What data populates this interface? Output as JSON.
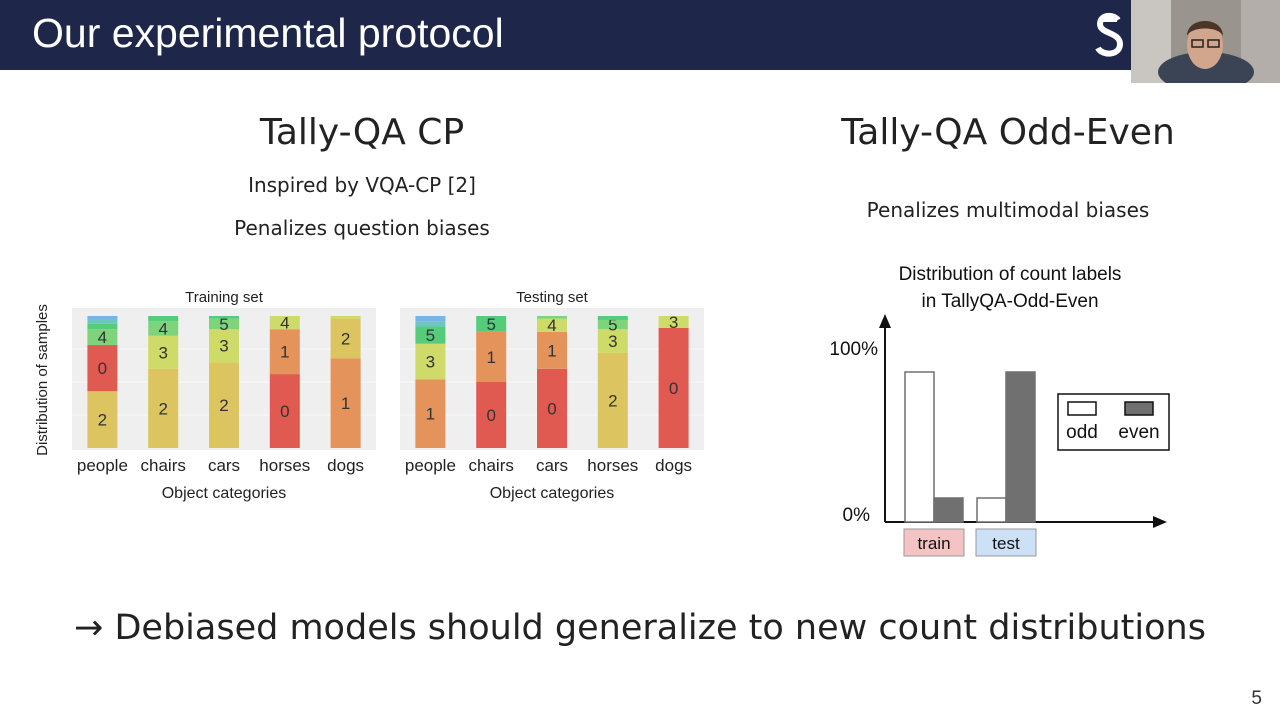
{
  "slide": {
    "title": "Our experimental protocol",
    "page_number": "5",
    "bottom_statement": "→ Debiased models should generalize to new count distributions"
  },
  "left_section": {
    "heading": "Tally-QA CP",
    "line1": "Inspired by VQA-CP [2]",
    "line2": "Penalizes question biases"
  },
  "right_section": {
    "heading": "Tally-QA Odd-Even",
    "line1": "Penalizes multimodal biases"
  },
  "colors": {
    "header_bg": "#1e2749",
    "label_0": "#e05a52",
    "label_1": "#e4945a",
    "label_2": "#dcc461",
    "label_3": "#cedb68",
    "label_4": "#7ed47a",
    "label_5": "#55cc7a",
    "label_6": "#6cc7c0",
    "label_7": "#78b4e6",
    "train_tag": "#f4c4c4",
    "test_tag": "#cce0f6"
  },
  "chart_data": [
    {
      "type": "bar",
      "title": "Training set",
      "xlabel": "Object categories",
      "ylabel": "Distribution of samples",
      "categories": [
        "people",
        "chairs",
        "cars",
        "horses",
        "dogs"
      ],
      "stacked": true,
      "segments": [
        [
          {
            "label": "2",
            "value": 0.43,
            "color": "#dcc461"
          },
          {
            "label": "0",
            "value": 0.35,
            "color": "#e05a52"
          },
          {
            "label": "4",
            "value": 0.12,
            "color": "#7ed47a"
          },
          {
            "label": "",
            "value": 0.04,
            "color": "#55cc7a"
          },
          {
            "label": "",
            "value": 0.03,
            "color": "#6cc7c0"
          },
          {
            "label": "",
            "value": 0.03,
            "color": "#78b4e6"
          }
        ],
        [
          {
            "label": "2",
            "value": 0.6,
            "color": "#dcc461"
          },
          {
            "label": "3",
            "value": 0.25,
            "color": "#cedb68"
          },
          {
            "label": "4",
            "value": 0.11,
            "color": "#7ed47a"
          },
          {
            "label": "",
            "value": 0.04,
            "color": "#55cc7a"
          }
        ],
        [
          {
            "label": "2",
            "value": 0.65,
            "color": "#dcc461"
          },
          {
            "label": "3",
            "value": 0.25,
            "color": "#cedb68"
          },
          {
            "label": "5",
            "value": 0.08,
            "color": "#7ed47a"
          },
          {
            "label": "",
            "value": 0.02,
            "color": "#55cc7a"
          }
        ],
        [
          {
            "label": "0",
            "value": 0.56,
            "color": "#e05a52"
          },
          {
            "label": "1",
            "value": 0.34,
            "color": "#e4945a"
          },
          {
            "label": "4",
            "value": 0.1,
            "color": "#cedb68"
          }
        ],
        [
          {
            "label": "1",
            "value": 0.68,
            "color": "#e4945a"
          },
          {
            "label": "2",
            "value": 0.3,
            "color": "#dcc461"
          },
          {
            "label": "",
            "value": 0.02,
            "color": "#cedb68"
          }
        ]
      ]
    },
    {
      "type": "bar",
      "title": "Testing set",
      "xlabel": "Object categories",
      "ylabel": "",
      "categories": [
        "people",
        "chairs",
        "cars",
        "horses",
        "dogs"
      ],
      "stacked": true,
      "segments": [
        [
          {
            "label": "1",
            "value": 0.52,
            "color": "#e4945a"
          },
          {
            "label": "3",
            "value": 0.27,
            "color": "#cedb68"
          },
          {
            "label": "5",
            "value": 0.13,
            "color": "#55cc7a"
          },
          {
            "label": "",
            "value": 0.04,
            "color": "#6cc7c0"
          },
          {
            "label": "",
            "value": 0.04,
            "color": "#78b4e6"
          }
        ],
        [
          {
            "label": "0",
            "value": 0.5,
            "color": "#e05a52"
          },
          {
            "label": "1",
            "value": 0.38,
            "color": "#e4945a"
          },
          {
            "label": "5",
            "value": 0.12,
            "color": "#55cc7a"
          }
        ],
        [
          {
            "label": "0",
            "value": 0.6,
            "color": "#e05a52"
          },
          {
            "label": "1",
            "value": 0.28,
            "color": "#e4945a"
          },
          {
            "label": "4",
            "value": 0.1,
            "color": "#cedb68"
          },
          {
            "label": "",
            "value": 0.02,
            "color": "#7ed47a"
          }
        ],
        [
          {
            "label": "2",
            "value": 0.72,
            "color": "#dcc461"
          },
          {
            "label": "3",
            "value": 0.18,
            "color": "#cedb68"
          },
          {
            "label": "5",
            "value": 0.07,
            "color": "#7ed47a"
          },
          {
            "label": "",
            "value": 0.03,
            "color": "#55cc7a"
          }
        ],
        [
          {
            "label": "0",
            "value": 0.91,
            "color": "#e05a52"
          },
          {
            "label": "3",
            "value": 0.09,
            "color": "#cedb68"
          }
        ]
      ]
    },
    {
      "type": "bar",
      "title": "Distribution of count labels\nin TallyQA-Odd-Even",
      "title_lines": [
        "Distribution of count labels",
        "in TallyQA-Odd-Even"
      ],
      "categories": [
        "train",
        "test"
      ],
      "y_ticks": [
        "100%",
        "0%"
      ],
      "ylim": [
        0,
        100
      ],
      "series": [
        {
          "name": "odd",
          "values": [
            100,
            16
          ],
          "color": "#ffffff"
        },
        {
          "name": "even",
          "values": [
            16,
            100
          ],
          "color": "#707070"
        }
      ],
      "legend_position": "right"
    }
  ]
}
